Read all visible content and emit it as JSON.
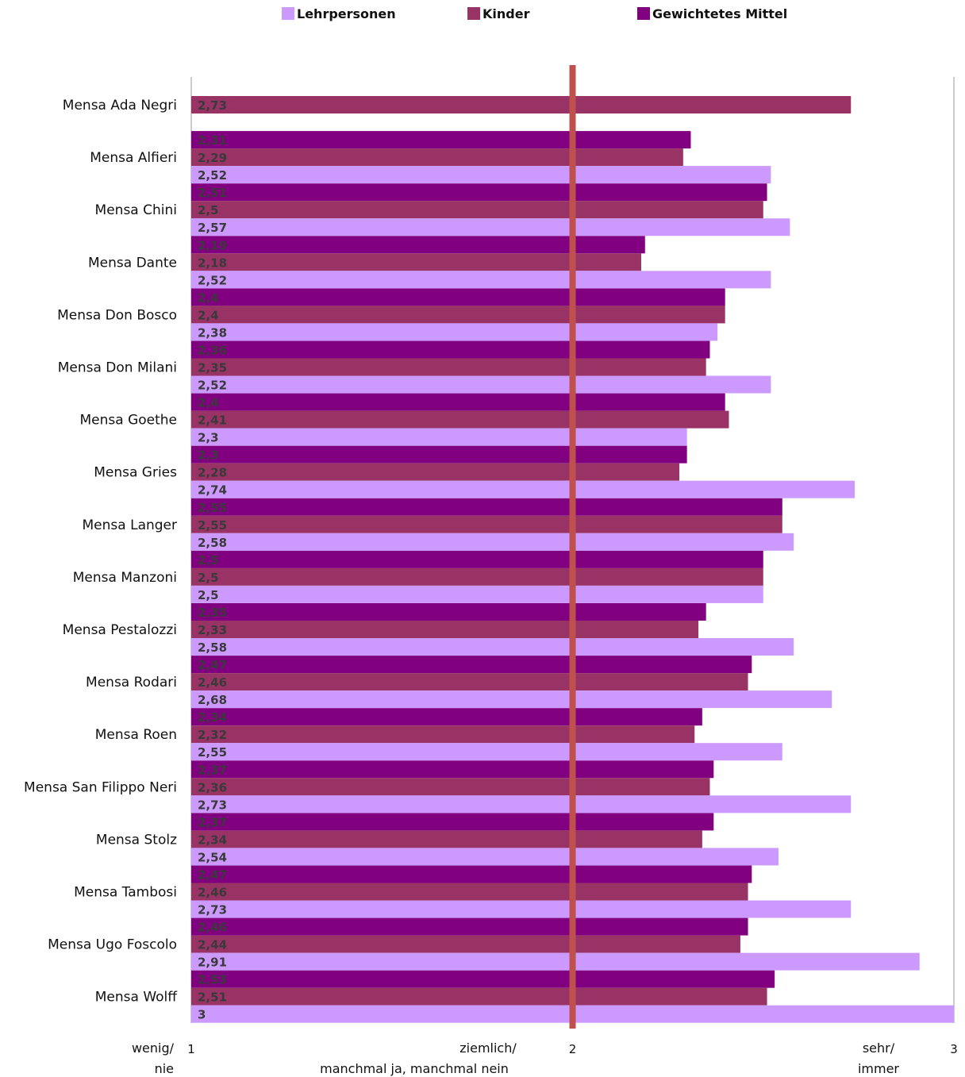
{
  "chart_data": {
    "type": "bar",
    "orientation": "horizontal",
    "xlim": [
      1,
      3
    ],
    "grid": false,
    "legend_position": "top",
    "reference_line": {
      "x": 2,
      "color": "#c0504d"
    },
    "x_ticks": [
      {
        "value": 1,
        "label": "1"
      },
      {
        "value": 2,
        "label": "2"
      },
      {
        "value": 3,
        "label": "3"
      }
    ],
    "axis_descriptions": [
      {
        "value": 1,
        "lines": [
          "wenig/",
          "nie"
        ]
      },
      {
        "value": 2,
        "lines": [
          "ziemlich/",
          "manchmal ja, manchmal nein"
        ]
      },
      {
        "value": 3,
        "lines": [
          "sehr/",
          "immer"
        ]
      }
    ],
    "legend": [
      {
        "name": "Lehrpersonen",
        "color": "#cc99ff"
      },
      {
        "name": "Kinder",
        "color": "#993366"
      },
      {
        "name": "Gewichtetes Mittel",
        "color": "#800080"
      }
    ],
    "categories": [
      "Mensa Ada Negri",
      "Mensa Alfieri",
      "Mensa Chini",
      "Mensa Dante",
      "Mensa Don Bosco",
      "Mensa Don Milani",
      "Mensa Goethe",
      "Mensa Gries",
      "Mensa Langer",
      "Mensa Manzoni",
      "Mensa Pestalozzi",
      "Mensa Rodari",
      "Mensa Roen",
      "Mensa San Filippo Neri",
      "Mensa Stolz",
      "Mensa Tambosi",
      "Mensa Ugo Foscolo",
      "Mensa Wolff"
    ],
    "series": [
      {
        "name": "Gewichtetes Mittel",
        "color": "#800080",
        "values": [
          null,
          2.31,
          2.51,
          2.19,
          2.4,
          2.36,
          2.4,
          2.3,
          2.55,
          2.5,
          2.35,
          2.47,
          2.34,
          2.37,
          2.37,
          2.47,
          2.46,
          2.53
        ],
        "labels": [
          null,
          "2,31",
          "2,51",
          "2,19",
          "2,4",
          "2,36",
          "2,4",
          "2,3",
          "2,55",
          "2,5",
          "2,35",
          "2,47",
          "2,34",
          "2,37",
          "2,37",
          "2,47",
          "2,46",
          "2,53"
        ]
      },
      {
        "name": "Kinder",
        "color": "#993366",
        "values": [
          2.73,
          2.29,
          2.5,
          2.18,
          2.4,
          2.35,
          2.41,
          2.28,
          2.55,
          2.5,
          2.33,
          2.46,
          2.32,
          2.36,
          2.34,
          2.46,
          2.44,
          2.51
        ],
        "labels": [
          "2,73",
          "2,29",
          "2,5",
          "2,18",
          "2,4",
          "2,35",
          "2,41",
          "2,28",
          "2,55",
          "2,5",
          "2,33",
          "2,46",
          "2,32",
          "2,36",
          "2,34",
          "2,46",
          "2,44",
          "2,51"
        ]
      },
      {
        "name": "Lehrpersonen",
        "color": "#cc99ff",
        "values": [
          null,
          2.52,
          2.57,
          2.52,
          2.38,
          2.52,
          2.3,
          2.74,
          2.58,
          2.5,
          2.58,
          2.68,
          2.55,
          2.73,
          2.54,
          2.73,
          2.91,
          3
        ],
        "labels": [
          null,
          "2,52",
          "2,57",
          "2,52",
          "2,38",
          "2,52",
          "2,3",
          "2,74",
          "2,58",
          "2,5",
          "2,58",
          "2,68",
          "2,55",
          "2,73",
          "2,54",
          "2,73",
          "2,91",
          "3"
        ]
      }
    ]
  }
}
